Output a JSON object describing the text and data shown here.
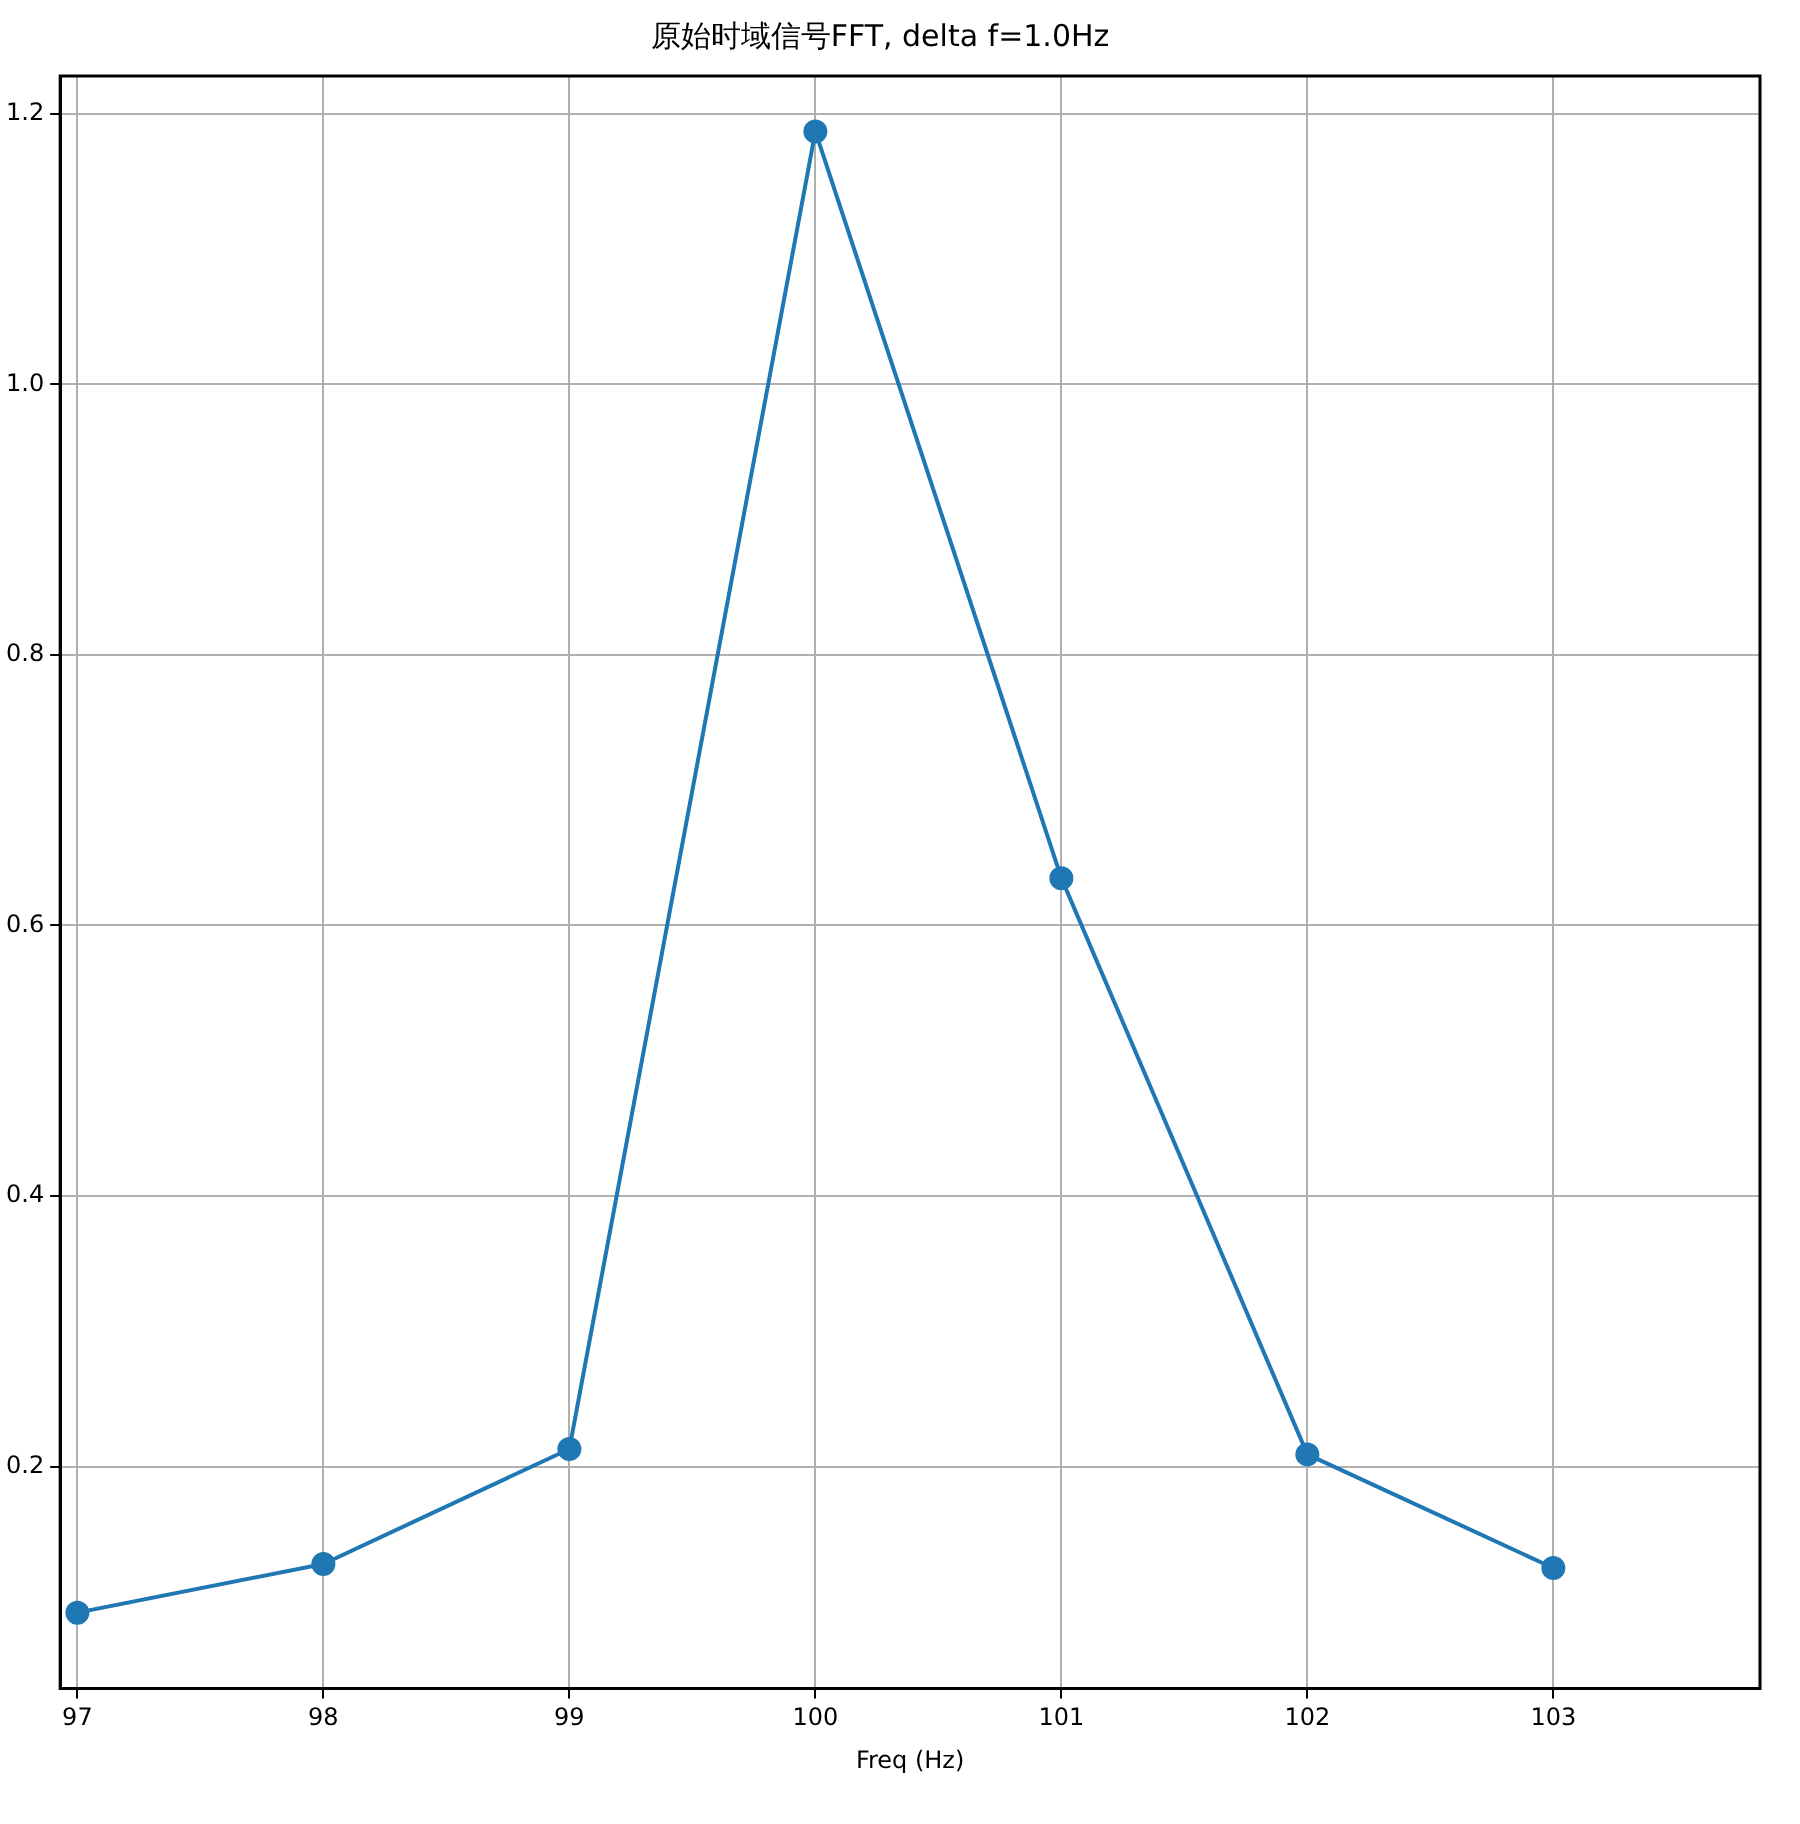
{
  "chart_data": {
    "type": "line",
    "title": "原始时域信号FFT, delta f=1.0Hz",
    "xlabel": "Freq (Hz)",
    "x": [
      97,
      98,
      99,
      100,
      101,
      102,
      103
    ],
    "series": [
      {
        "color": "#1f77b4",
        "values": [
          0.092,
          0.128,
          0.213,
          1.187,
          0.635,
          0.209,
          0.125
        ]
      }
    ],
    "xlim": [
      96.93,
      103.84
    ],
    "xticks": [
      97,
      98,
      99,
      100,
      101,
      102,
      103
    ],
    "ylim": [
      0.036,
      1.228
    ],
    "yticks": [
      0.2,
      0.4,
      0.6,
      0.8,
      {
        "value": 1,
        "label": "1.0"
      },
      1.2
    ],
    "grid": true,
    "marker": "circle",
    "line_style": "solid",
    "legend": false
  }
}
